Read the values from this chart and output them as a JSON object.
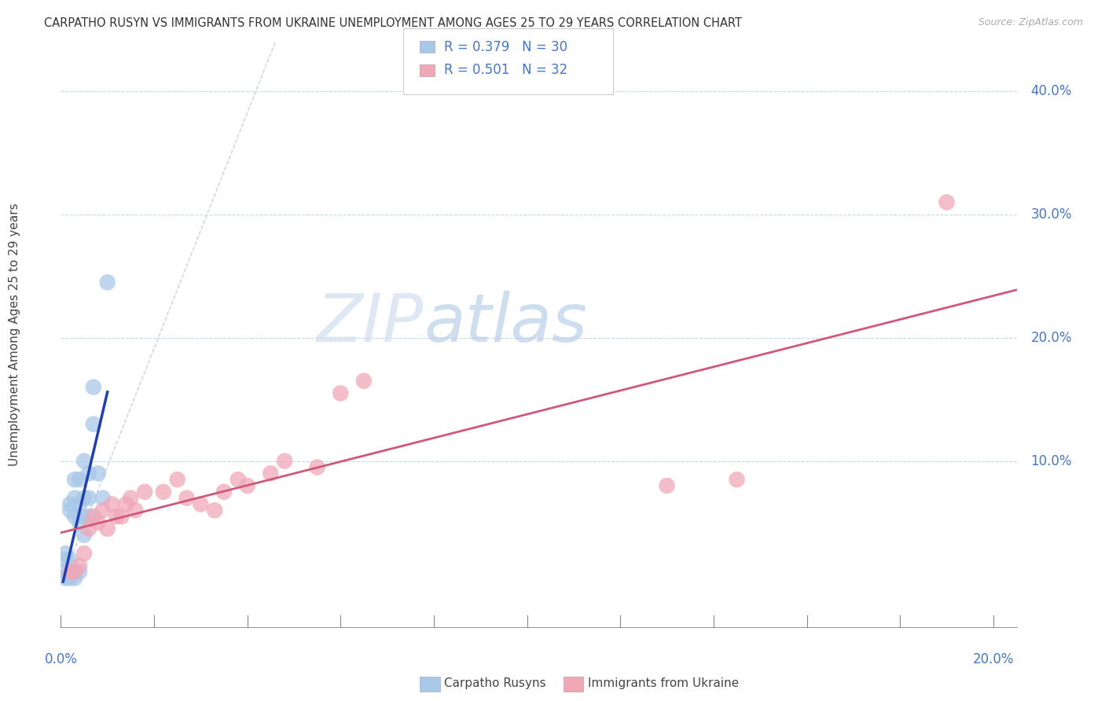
{
  "title": "CARPATHO RUSYN VS IMMIGRANTS FROM UKRAINE UNEMPLOYMENT AMONG AGES 25 TO 29 YEARS CORRELATION CHART",
  "source": "Source: ZipAtlas.com",
  "ylabel": "Unemployment Among Ages 25 to 29 years",
  "right_yticks": [
    "40.0%",
    "30.0%",
    "20.0%",
    "10.0%"
  ],
  "right_ytick_vals": [
    0.4,
    0.3,
    0.2,
    0.1
  ],
  "legend_blue_r": "0.379",
  "legend_blue_n": "30",
  "legend_pink_r": "0.501",
  "legend_pink_n": "32",
  "blue_color": "#a8c8e8",
  "pink_color": "#f0a8b8",
  "blue_line_color": "#2040b0",
  "pink_line_color": "#d05878",
  "watermark_zip": "ZIP",
  "watermark_atlas": "atlas",
  "background_color": "#ffffff",
  "blue_scatter_x": [
    0.001,
    0.001,
    0.001,
    0.001,
    0.002,
    0.002,
    0.002,
    0.002,
    0.002,
    0.003,
    0.003,
    0.003,
    0.003,
    0.003,
    0.004,
    0.004,
    0.004,
    0.004,
    0.005,
    0.005,
    0.005,
    0.005,
    0.006,
    0.006,
    0.006,
    0.007,
    0.007,
    0.008,
    0.009,
    0.01
  ],
  "blue_scatter_y": [
    0.005,
    0.01,
    0.02,
    0.025,
    0.005,
    0.01,
    0.02,
    0.06,
    0.065,
    0.005,
    0.01,
    0.055,
    0.07,
    0.085,
    0.01,
    0.05,
    0.065,
    0.085,
    0.04,
    0.055,
    0.07,
    0.1,
    0.055,
    0.07,
    0.09,
    0.13,
    0.16,
    0.09,
    0.07,
    0.245
  ],
  "pink_scatter_x": [
    0.002,
    0.003,
    0.004,
    0.005,
    0.006,
    0.007,
    0.008,
    0.009,
    0.01,
    0.011,
    0.012,
    0.013,
    0.014,
    0.015,
    0.016,
    0.018,
    0.022,
    0.025,
    0.027,
    0.03,
    0.033,
    0.035,
    0.038,
    0.04,
    0.045,
    0.048,
    0.055,
    0.06,
    0.065,
    0.13,
    0.145,
    0.19
  ],
  "pink_scatter_y": [
    0.01,
    0.01,
    0.015,
    0.025,
    0.045,
    0.055,
    0.05,
    0.06,
    0.045,
    0.065,
    0.055,
    0.055,
    0.065,
    0.07,
    0.06,
    0.075,
    0.075,
    0.085,
    0.07,
    0.065,
    0.06,
    0.075,
    0.085,
    0.08,
    0.09,
    0.1,
    0.095,
    0.155,
    0.165,
    0.08,
    0.085,
    0.31
  ],
  "xlim": [
    0.0,
    0.205
  ],
  "ylim": [
    -0.035,
    0.44
  ],
  "grid_color": "#c8d8e8",
  "dashed_color": "#b8c8d8",
  "xtick_color": "#4477cc",
  "ytick_color": "#4477cc"
}
